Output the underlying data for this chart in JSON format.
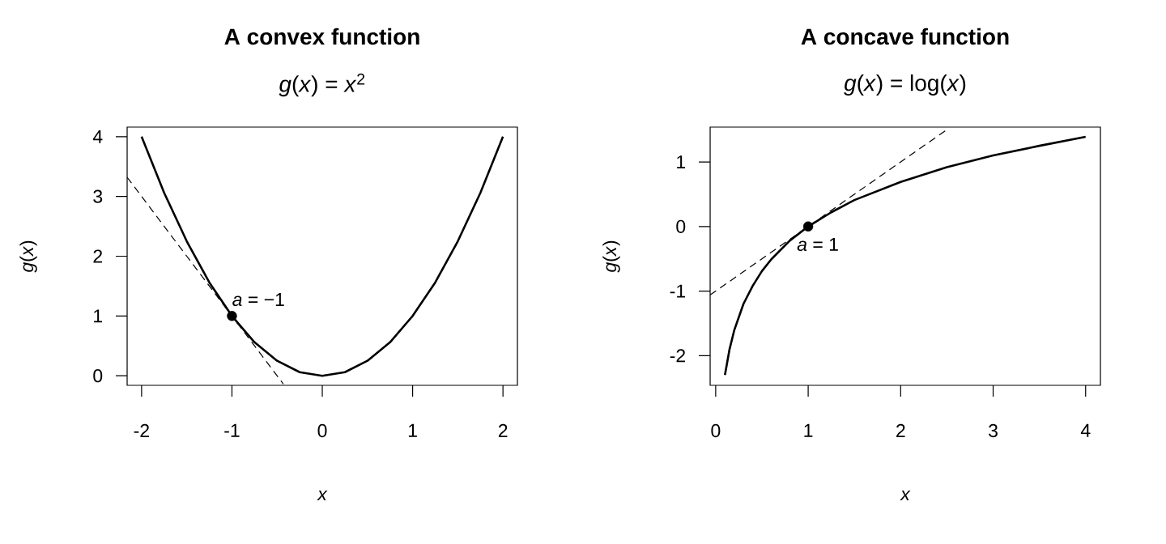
{
  "chart_data": [
    {
      "type": "line",
      "title": "A convex function",
      "subtitle": "*g*(*x*) = *x*$^{2}$",
      "xlabel": "x",
      "ylabel": "*g*(*x*)",
      "xlim": [
        -2.16,
        2.16
      ],
      "ylim": [
        -0.16,
        4.16
      ],
      "xticks": [
        -2,
        -1,
        0,
        1,
        2
      ],
      "yticks": [
        0,
        1,
        2,
        3,
        4
      ],
      "series": [
        {
          "type": "line",
          "color": "#000000",
          "line_style": "solid",
          "x": [
            -2,
            -1.75,
            -1.5,
            -1.25,
            -1,
            -0.75,
            -0.5,
            -0.25,
            0,
            0.25,
            0.5,
            0.75,
            1,
            1.25,
            1.5,
            1.75,
            2
          ],
          "values": [
            4,
            3.06,
            2.25,
            1.56,
            1,
            0.56,
            0.25,
            0.06,
            0,
            0.06,
            0.25,
            0.56,
            1,
            1.56,
            2.25,
            3.06,
            4
          ]
        },
        {
          "type": "line",
          "color": "#000000",
          "line_style": "dashed",
          "x": [
            -2.16,
            -0.43
          ],
          "values": [
            3.32,
            -0.14
          ]
        },
        {
          "type": "scatter",
          "color": "#000000",
          "marker": "circle",
          "x": [
            -1
          ],
          "values": [
            1
          ]
        }
      ],
      "annotations": [
        {
          "text": "*a* = −1",
          "x": -1,
          "y": 1
        }
      ]
    },
    {
      "type": "line",
      "title": "A concave function",
      "subtitle": "*g*(*x*) = log(*x*)",
      "xlabel": "x",
      "ylabel": "*g*(*x*)",
      "xlim": [
        -0.06,
        4.16
      ],
      "ylim": [
        -2.46,
        1.54
      ],
      "xticks": [
        0,
        1,
        2,
        3,
        4
      ],
      "yticks": [
        -2,
        -1,
        0,
        1
      ],
      "series": [
        {
          "type": "line",
          "color": "#000000",
          "line_style": "solid",
          "x": [
            0.1,
            0.15,
            0.2,
            0.3,
            0.4,
            0.5,
            0.6,
            0.8,
            1,
            1.25,
            1.5,
            2,
            2.5,
            3,
            3.5,
            4
          ],
          "values": [
            -2.3,
            -1.9,
            -1.61,
            -1.2,
            -0.92,
            -0.69,
            -0.51,
            -0.22,
            0,
            0.22,
            0.41,
            0.69,
            0.92,
            1.1,
            1.25,
            1.39
          ]
        },
        {
          "type": "line",
          "color": "#000000",
          "line_style": "dashed",
          "x": [
            -0.06,
            2.5
          ],
          "values": [
            -1.06,
            1.5
          ]
        },
        {
          "type": "scatter",
          "color": "#000000",
          "marker": "circle",
          "x": [
            1
          ],
          "values": [
            0
          ]
        }
      ],
      "annotations": [
        {
          "text": "*a* = 1",
          "x": 1,
          "y": 0
        }
      ]
    }
  ]
}
